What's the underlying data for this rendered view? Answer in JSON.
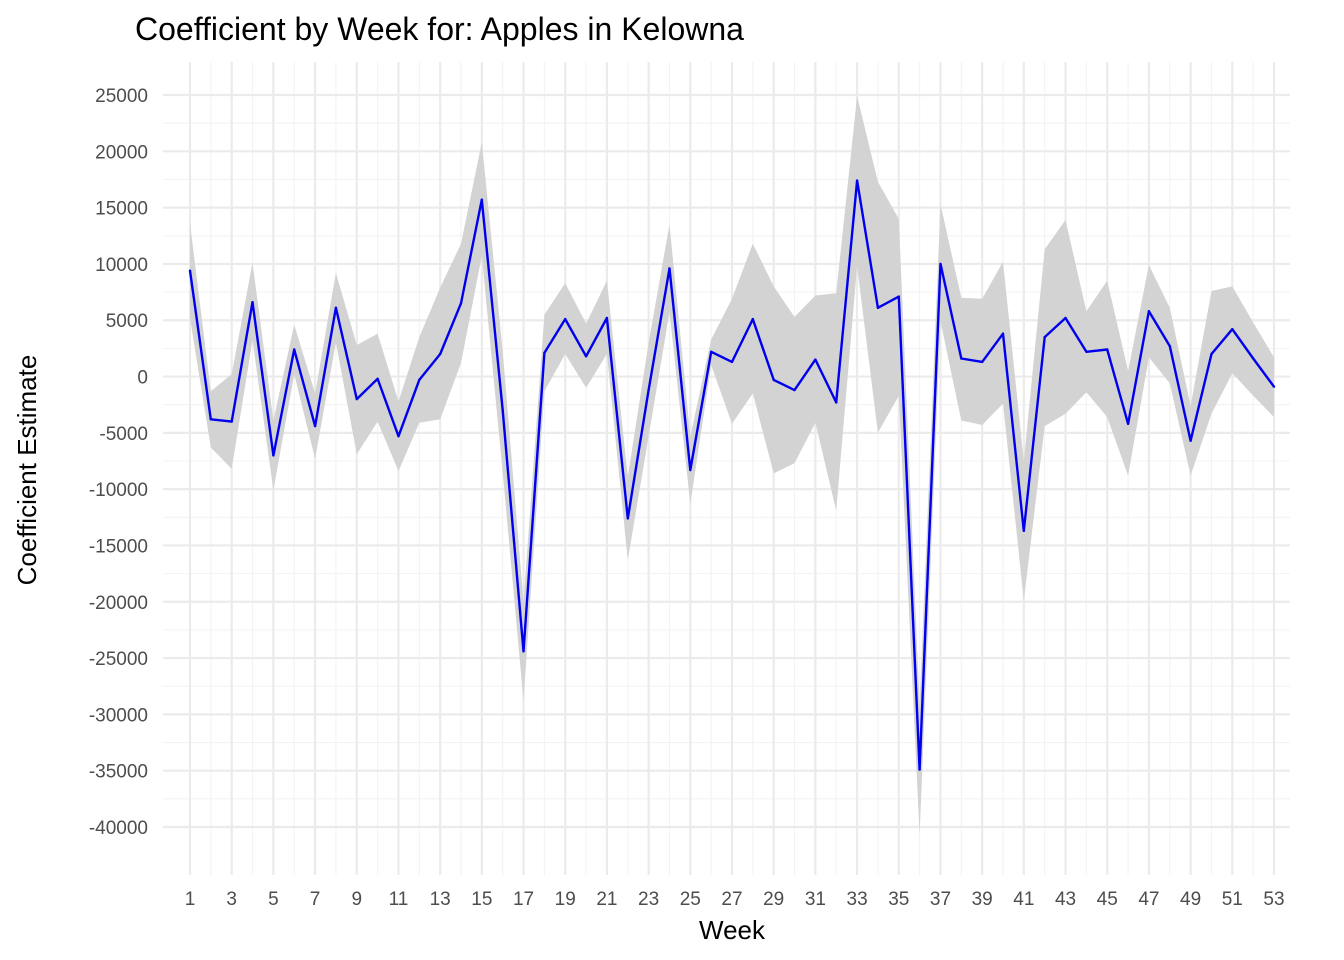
{
  "chart_data": {
    "type": "line",
    "title": "Coefficient by Week for: Apples in Kelowna",
    "xlabel": "Week",
    "ylabel": "Coefficient Estimate",
    "xlim": [
      1,
      53
    ],
    "ylim": [
      -40000,
      25000
    ],
    "x_ticks": [
      1,
      3,
      5,
      7,
      9,
      11,
      13,
      15,
      17,
      19,
      21,
      23,
      25,
      27,
      29,
      31,
      33,
      35,
      37,
      39,
      41,
      43,
      45,
      47,
      49,
      51,
      53
    ],
    "y_ticks": [
      25000,
      20000,
      15000,
      10000,
      5000,
      0,
      -5000,
      -10000,
      -15000,
      -20000,
      -25000,
      -30000,
      -35000,
      -40000
    ],
    "grid": true,
    "legend": "none",
    "colors": {
      "line": "#0000ee",
      "ribbon": "#d3d3d3",
      "grid": "#ebebeb"
    },
    "series": [
      {
        "x": [
          1,
          2,
          3,
          4,
          5,
          6,
          7,
          8,
          9,
          10,
          11,
          12,
          13,
          14,
          15,
          16,
          17,
          18,
          19,
          20,
          21,
          22,
          23,
          24,
          25,
          26,
          27,
          28,
          29,
          30,
          31,
          32,
          33,
          34,
          35,
          36,
          37,
          38,
          39,
          40,
          41,
          42,
          43,
          44,
          45,
          46,
          47,
          48,
          49,
          50,
          51,
          52,
          53
        ],
        "y": [
          9400,
          -3800,
          -4000,
          6600,
          -7000,
          2400,
          -4400,
          6100,
          -2000,
          -200,
          -5300,
          -300,
          2000,
          6500,
          15700,
          -3000,
          -24400,
          2100,
          5100,
          1800,
          5200,
          -12600,
          -1200,
          9600,
          -8300,
          2200,
          1300,
          5100,
          -300,
          -1200,
          1500,
          -2300,
          17400,
          6100,
          7100,
          -34900,
          10000,
          1600,
          1300,
          3800,
          -13700,
          3500,
          5200,
          2200,
          2400,
          -4200,
          5800,
          2700,
          -5700,
          2000,
          4200,
          1600,
          -900
        ],
        "lower": [
          5200,
          -6300,
          -8200,
          3200,
          -10100,
          200,
          -7300,
          3000,
          -6900,
          -4000,
          -8400,
          -4100,
          -3800,
          1200,
          10700,
          -8500,
          -28800,
          -1300,
          2000,
          -1000,
          2000,
          -16300,
          -5300,
          5700,
          -11300,
          1000,
          -4200,
          -1500,
          -8600,
          -7700,
          -4100,
          -11900,
          9800,
          -5000,
          -1700,
          -40700,
          4900,
          -3900,
          -4300,
          -2400,
          -19900,
          -4400,
          -3300,
          -1400,
          -3600,
          -8800,
          1700,
          -600,
          -8800,
          -3300,
          300,
          -1700,
          -3600
        ],
        "upper": [
          13600,
          -1300,
          200,
          10100,
          -3900,
          4600,
          -1500,
          9200,
          2800,
          3800,
          -2200,
          3500,
          7900,
          11800,
          20800,
          2300,
          -20000,
          5500,
          8300,
          4700,
          8500,
          -8900,
          3000,
          13500,
          -5300,
          3300,
          6900,
          11800,
          8000,
          5300,
          7200,
          7400,
          24900,
          17300,
          14000,
          -29200,
          15300,
          7000,
          6900,
          10200,
          -7500,
          11300,
          13900,
          5800,
          8500,
          500,
          9900,
          6100,
          -2600,
          7600,
          8000,
          4800,
          1700
        ]
      }
    ]
  }
}
